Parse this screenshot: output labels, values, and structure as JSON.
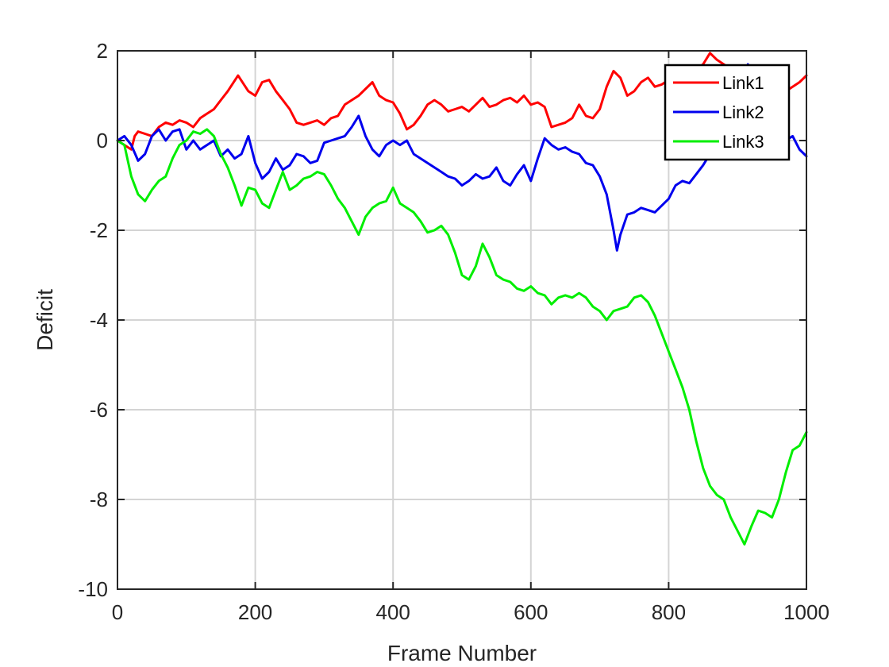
{
  "chart_data": {
    "type": "line",
    "title": "",
    "xlabel": "Frame Number",
    "ylabel": "Deficit",
    "xlim": [
      0,
      1000
    ],
    "ylim": [
      -10,
      2
    ],
    "xticks": [
      0,
      200,
      400,
      600,
      800,
      1000
    ],
    "yticks": [
      2,
      0,
      -2,
      -4,
      -6,
      -8,
      -10
    ],
    "grid": true,
    "legend_position": "top-right",
    "series": [
      {
        "name": "Link1",
        "color": "#ff0000",
        "x": [
          0,
          10,
          20,
          25,
          30,
          40,
          50,
          60,
          70,
          80,
          90,
          100,
          110,
          120,
          130,
          140,
          150,
          160,
          175,
          190,
          200,
          210,
          220,
          230,
          240,
          250,
          260,
          270,
          280,
          290,
          300,
          310,
          320,
          330,
          340,
          350,
          360,
          370,
          380,
          390,
          400,
          410,
          420,
          430,
          440,
          450,
          460,
          470,
          480,
          490,
          500,
          510,
          520,
          530,
          540,
          550,
          560,
          570,
          580,
          590,
          600,
          610,
          620,
          630,
          640,
          650,
          660,
          670,
          680,
          690,
          700,
          710,
          720,
          730,
          740,
          750,
          760,
          770,
          780,
          790,
          800,
          810,
          820,
          830,
          840,
          850,
          860,
          870,
          880,
          890,
          900,
          910,
          920,
          930,
          940,
          950,
          960,
          970,
          980,
          990,
          1000
        ],
        "y": [
          0,
          -0.1,
          -0.2,
          0.1,
          0.2,
          0.15,
          0.1,
          0.3,
          0.4,
          0.35,
          0.45,
          0.4,
          0.3,
          0.5,
          0.6,
          0.7,
          0.9,
          1.1,
          1.45,
          1.1,
          1.0,
          1.3,
          1.35,
          1.1,
          0.9,
          0.7,
          0.4,
          0.35,
          0.4,
          0.45,
          0.35,
          0.5,
          0.55,
          0.8,
          0.9,
          1.0,
          1.15,
          1.3,
          1.0,
          0.9,
          0.85,
          0.6,
          0.25,
          0.35,
          0.55,
          0.8,
          0.9,
          0.8,
          0.65,
          0.7,
          0.75,
          0.65,
          0.8,
          0.95,
          0.75,
          0.8,
          0.9,
          0.95,
          0.85,
          1.0,
          0.8,
          0.85,
          0.75,
          0.3,
          0.35,
          0.4,
          0.5,
          0.8,
          0.55,
          0.5,
          0.7,
          1.2,
          1.55,
          1.4,
          1.0,
          1.1,
          1.3,
          1.4,
          1.2,
          1.25,
          1.35,
          1.3,
          1.2,
          1.5,
          1.6,
          1.7,
          1.95,
          1.8,
          1.7,
          1.6,
          1.5,
          1.3,
          1.1,
          1.2,
          1.5,
          1.4,
          1.3,
          1.1,
          1.2,
          1.3,
          1.45
        ]
      },
      {
        "name": "Link2",
        "color": "#0000ee",
        "x": [
          0,
          10,
          20,
          30,
          40,
          50,
          60,
          70,
          80,
          90,
          100,
          110,
          120,
          130,
          140,
          150,
          160,
          170,
          180,
          190,
          200,
          210,
          220,
          230,
          240,
          250,
          260,
          270,
          280,
          290,
          300,
          310,
          320,
          330,
          340,
          350,
          360,
          370,
          380,
          390,
          400,
          410,
          420,
          430,
          440,
          450,
          460,
          470,
          480,
          490,
          500,
          510,
          520,
          530,
          540,
          550,
          560,
          570,
          580,
          590,
          600,
          610,
          620,
          630,
          640,
          650,
          660,
          670,
          680,
          690,
          700,
          710,
          720,
          725,
          730,
          740,
          750,
          760,
          770,
          780,
          790,
          800,
          810,
          820,
          830,
          840,
          850,
          860,
          870,
          880,
          890,
          900,
          910,
          915,
          920,
          930,
          940,
          950,
          960,
          970,
          980,
          990,
          1000
        ],
        "y": [
          0,
          0.1,
          -0.1,
          -0.45,
          -0.3,
          0.1,
          0.25,
          0.0,
          0.2,
          0.25,
          -0.2,
          0.0,
          -0.2,
          -0.1,
          0.0,
          -0.35,
          -0.2,
          -0.4,
          -0.3,
          0.1,
          -0.5,
          -0.85,
          -0.7,
          -0.4,
          -0.65,
          -0.55,
          -0.3,
          -0.35,
          -0.5,
          -0.45,
          -0.05,
          0.0,
          0.05,
          0.1,
          0.3,
          0.55,
          0.1,
          -0.2,
          -0.35,
          -0.1,
          0.0,
          -0.1,
          0.0,
          -0.3,
          -0.4,
          -0.5,
          -0.6,
          -0.7,
          -0.8,
          -0.85,
          -1.0,
          -0.9,
          -0.75,
          -0.85,
          -0.8,
          -0.6,
          -0.9,
          -1.0,
          -0.75,
          -0.55,
          -0.9,
          -0.4,
          0.05,
          -0.1,
          -0.2,
          -0.15,
          -0.25,
          -0.3,
          -0.5,
          -0.55,
          -0.8,
          -1.2,
          -2.0,
          -2.45,
          -2.1,
          -1.65,
          -1.6,
          -1.5,
          -1.55,
          -1.6,
          -1.45,
          -1.3,
          -1.0,
          -0.9,
          -0.95,
          -0.75,
          -0.55,
          -0.3,
          0.0,
          0.4,
          0.8,
          1.1,
          1.4,
          1.7,
          1.6,
          1.2,
          0.8,
          0.4,
          0.1,
          0.0,
          0.1,
          -0.2,
          -0.35
        ]
      },
      {
        "name": "Link3",
        "color": "#00ee00",
        "x": [
          0,
          10,
          20,
          30,
          40,
          50,
          60,
          70,
          80,
          90,
          100,
          110,
          120,
          130,
          140,
          150,
          160,
          170,
          180,
          190,
          200,
          210,
          220,
          230,
          240,
          250,
          260,
          270,
          280,
          290,
          300,
          310,
          320,
          330,
          340,
          350,
          360,
          370,
          380,
          390,
          400,
          410,
          420,
          430,
          440,
          450,
          460,
          470,
          480,
          490,
          500,
          510,
          520,
          530,
          540,
          550,
          560,
          570,
          580,
          590,
          600,
          610,
          620,
          630,
          640,
          650,
          660,
          670,
          680,
          690,
          700,
          710,
          720,
          730,
          740,
          750,
          760,
          770,
          780,
          790,
          800,
          810,
          820,
          830,
          840,
          850,
          860,
          870,
          880,
          890,
          900,
          910,
          920,
          930,
          940,
          950,
          960,
          970,
          980,
          990,
          1000
        ],
        "y": [
          0,
          -0.1,
          -0.8,
          -1.2,
          -1.35,
          -1.1,
          -0.9,
          -0.8,
          -0.4,
          -0.1,
          0.0,
          0.2,
          0.15,
          0.25,
          0.1,
          -0.3,
          -0.6,
          -1.0,
          -1.45,
          -1.05,
          -1.1,
          -1.4,
          -1.5,
          -1.1,
          -0.7,
          -1.1,
          -1.0,
          -0.85,
          -0.8,
          -0.7,
          -0.75,
          -1.0,
          -1.3,
          -1.5,
          -1.8,
          -2.1,
          -1.7,
          -1.5,
          -1.4,
          -1.35,
          -1.05,
          -1.4,
          -1.5,
          -1.6,
          -1.8,
          -2.05,
          -2.0,
          -1.9,
          -2.1,
          -2.5,
          -3.0,
          -3.1,
          -2.8,
          -2.3,
          -2.6,
          -3.0,
          -3.1,
          -3.15,
          -3.3,
          -3.35,
          -3.25,
          -3.4,
          -3.45,
          -3.65,
          -3.5,
          -3.45,
          -3.5,
          -3.4,
          -3.5,
          -3.7,
          -3.8,
          -4.0,
          -3.8,
          -3.75,
          -3.7,
          -3.5,
          -3.45,
          -3.6,
          -3.9,
          -4.3,
          -4.7,
          -5.1,
          -5.5,
          -6.0,
          -6.7,
          -7.3,
          -7.7,
          -7.9,
          -8.0,
          -8.4,
          -8.7,
          -9.0,
          -8.6,
          -8.25,
          -8.3,
          -8.4,
          -8.0,
          -7.4,
          -6.9,
          -6.8,
          -6.5
        ]
      }
    ]
  }
}
